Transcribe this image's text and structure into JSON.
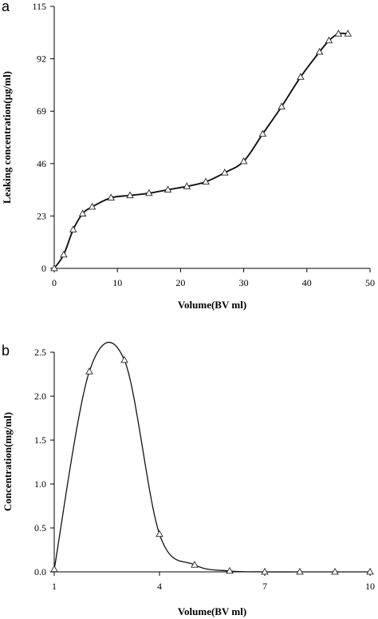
{
  "chart_data": [
    {
      "type": "line",
      "panel_label": "a",
      "title": "",
      "xlabel": "Volume(BV ml)",
      "ylabel": "Leaking concentration(µg/ml)",
      "xlim": [
        0,
        50
      ],
      "ylim": [
        0,
        115
      ],
      "x_ticks": [
        0,
        10,
        20,
        30,
        40,
        50
      ],
      "y_ticks": [
        0,
        23,
        46,
        69,
        92,
        115
      ],
      "grid": false,
      "series": [
        {
          "x": [
            0,
            1.5,
            3,
            4.5,
            6,
            9,
            12,
            15,
            18,
            21,
            24,
            27,
            30,
            33,
            36,
            39,
            42,
            43.5,
            45,
            46.5
          ],
          "y": [
            0,
            6,
            17,
            24,
            27,
            31,
            32,
            33,
            34.5,
            36,
            38,
            42,
            47,
            59,
            71,
            84,
            95,
            100,
            103,
            103
          ]
        }
      ]
    },
    {
      "type": "line",
      "panel_label": "b",
      "title": "",
      "xlabel": "Volume(BV ml)",
      "ylabel": "Concentration(mg/ml)",
      "xlim": [
        1,
        10
      ],
      "ylim": [
        0,
        2.5
      ],
      "x_ticks": [
        1,
        4,
        7,
        10
      ],
      "y_ticks": [
        0.0,
        0.5,
        1.0,
        1.5,
        2.0,
        2.5
      ],
      "y_tick_labels": [
        "0.0",
        "0.5",
        "1.0",
        "1.5",
        "2.0",
        "2.5"
      ],
      "grid": false,
      "series": [
        {
          "x": [
            1,
            2,
            3,
            4,
            5,
            6,
            7,
            8,
            9,
            10
          ],
          "y": [
            0.03,
            2.28,
            2.41,
            0.43,
            0.08,
            0.01,
            0.0,
            0.0,
            0.0,
            0.0
          ]
        }
      ]
    }
  ]
}
